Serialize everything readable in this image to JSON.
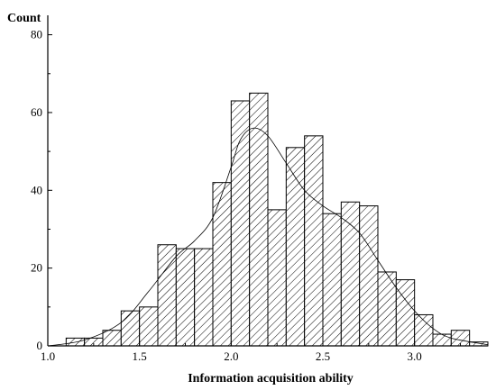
{
  "chart_data": {
    "type": "bar",
    "xlabel": "Information acquisition ability",
    "ylabel": "Count",
    "xlim": [
      1.0,
      3.4
    ],
    "ylim": [
      0,
      85
    ],
    "x_ticks": [
      "1.0",
      "1.5",
      "2.0",
      "2.5",
      "3.0"
    ],
    "y_ticks": [
      "0",
      "20",
      "40",
      "60",
      "80"
    ],
    "bin_width": 0.1,
    "bins": [
      {
        "start": 1.1,
        "value": 2
      },
      {
        "start": 1.2,
        "value": 2
      },
      {
        "start": 1.3,
        "value": 4
      },
      {
        "start": 1.4,
        "value": 9
      },
      {
        "start": 1.5,
        "value": 10
      },
      {
        "start": 1.6,
        "value": 26
      },
      {
        "start": 1.7,
        "value": 25
      },
      {
        "start": 1.8,
        "value": 25
      },
      {
        "start": 1.9,
        "value": 42
      },
      {
        "start": 2.0,
        "value": 63
      },
      {
        "start": 2.1,
        "value": 65
      },
      {
        "start": 2.2,
        "value": 35
      },
      {
        "start": 2.3,
        "value": 51
      },
      {
        "start": 2.4,
        "value": 54
      },
      {
        "start": 2.5,
        "value": 34
      },
      {
        "start": 2.6,
        "value": 37
      },
      {
        "start": 2.7,
        "value": 36
      },
      {
        "start": 2.8,
        "value": 19
      },
      {
        "start": 2.9,
        "value": 17
      },
      {
        "start": 3.0,
        "value": 8
      },
      {
        "start": 3.1,
        "value": 3
      },
      {
        "start": 3.2,
        "value": 4
      },
      {
        "start": 3.3,
        "value": 1
      }
    ],
    "fit_curve": {
      "x": [
        1.0,
        1.2,
        1.4,
        1.55,
        1.7,
        1.8,
        1.9,
        2.0,
        2.05,
        2.12,
        2.2,
        2.3,
        2.4,
        2.5,
        2.6,
        2.7,
        2.8,
        2.9,
        3.0,
        3.1,
        3.2,
        3.4
      ],
      "y": [
        0,
        1.5,
        6,
        14,
        23,
        27,
        33,
        46,
        53,
        56,
        54,
        47,
        40,
        36,
        33,
        29,
        22,
        15,
        9,
        4.5,
        2,
        0.3
      ]
    },
    "hatch": "diagonal",
    "grid": false,
    "legend": "none"
  }
}
